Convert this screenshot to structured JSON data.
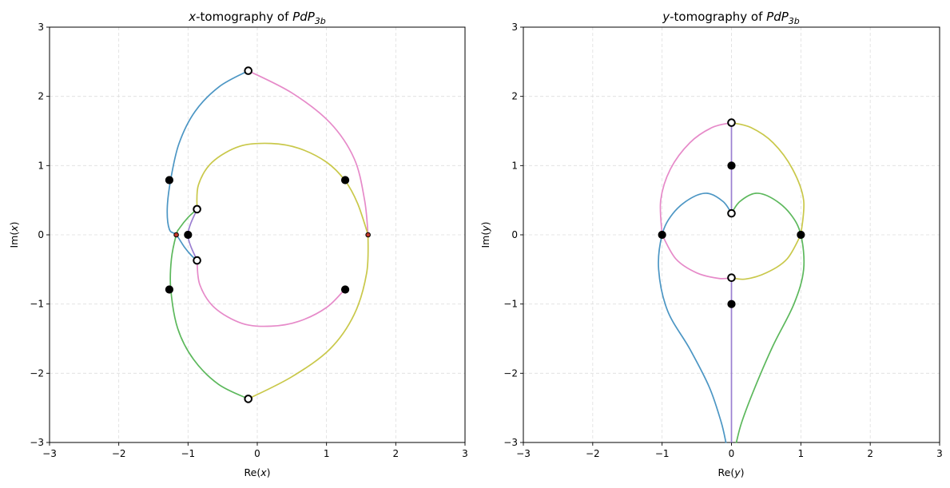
{
  "chart_data": [
    {
      "type": "line",
      "title_pre": "x",
      "title_mid": "-tomography of ",
      "title_math": "PdP",
      "title_sub": "3b",
      "xlabel_pre": "Re(",
      "xlabel_var": "x",
      "xlabel_post": ")",
      "ylabel_pre": "Im(",
      "ylabel_var": "x",
      "ylabel_post": ")",
      "xlim": [
        -3,
        3
      ],
      "ylim": [
        -3,
        3
      ],
      "xticks": [
        -3,
        -2,
        -1,
        0,
        1,
        2,
        3
      ],
      "yticks": [
        -3,
        -2,
        -1,
        0,
        1,
        2,
        3
      ],
      "tick_labels": [
        "−3",
        "−2",
        "−1",
        "0",
        "1",
        "2",
        "3"
      ],
      "grid": true,
      "series": [
        {
          "name": "blue",
          "color": "#4c96c4",
          "points": [
            [
              -0.13,
              2.37
            ],
            [
              -0.55,
              2.14
            ],
            [
              -0.9,
              1.78
            ],
            [
              -1.13,
              1.32
            ],
            [
              -1.25,
              0.8
            ],
            [
              -1.3,
              0.38
            ],
            [
              -1.27,
              0.08
            ],
            [
              -1.17,
              0.0
            ],
            [
              -1.05,
              -0.18
            ],
            [
              -0.95,
              -0.3
            ],
            [
              -0.87,
              -0.37
            ]
          ]
        },
        {
          "name": "pink-1",
          "color": "#e68ac9",
          "points": [
            [
              -0.13,
              2.37
            ],
            [
              0.5,
              2.05
            ],
            [
              1.05,
              1.62
            ],
            [
              1.4,
              1.1
            ],
            [
              1.55,
              0.5
            ],
            [
              1.6,
              0.0
            ]
          ]
        },
        {
          "name": "pink-2",
          "color": "#e68ac9",
          "points": [
            [
              -0.87,
              -0.37
            ],
            [
              -0.83,
              -0.72
            ],
            [
              -0.62,
              -1.05
            ],
            [
              -0.22,
              -1.28
            ],
            [
              0.2,
              -1.32
            ],
            [
              0.6,
              -1.25
            ],
            [
              1.0,
              -1.05
            ],
            [
              1.27,
              -0.78
            ]
          ]
        },
        {
          "name": "yellow-1",
          "color": "#c9c84a",
          "points": [
            [
              -0.87,
              0.37
            ],
            [
              -0.85,
              0.72
            ],
            [
              -0.65,
              1.05
            ],
            [
              -0.25,
              1.28
            ],
            [
              0.2,
              1.32
            ],
            [
              0.6,
              1.25
            ],
            [
              1.0,
              1.05
            ],
            [
              1.27,
              0.78
            ],
            [
              1.45,
              0.45
            ],
            [
              1.6,
              0.0
            ]
          ]
        },
        {
          "name": "yellow-2",
          "color": "#c9c84a",
          "points": [
            [
              1.6,
              0.0
            ],
            [
              1.58,
              -0.55
            ],
            [
              1.4,
              -1.15
            ],
            [
              1.05,
              -1.65
            ],
            [
              0.5,
              -2.05
            ],
            [
              -0.13,
              -2.37
            ]
          ]
        },
        {
          "name": "green",
          "color": "#5cb85c",
          "points": [
            [
              -0.87,
              0.37
            ],
            [
              -1.0,
              0.25
            ],
            [
              -1.12,
              0.1
            ],
            [
              -1.17,
              0.0
            ],
            [
              -1.24,
              -0.35
            ],
            [
              -1.25,
              -0.78
            ],
            [
              -1.15,
              -1.35
            ],
            [
              -0.92,
              -1.8
            ],
            [
              -0.56,
              -2.16
            ],
            [
              -0.13,
              -2.37
            ]
          ]
        },
        {
          "name": "purple",
          "color": "#9b7fd1",
          "points": [
            [
              -0.87,
              0.37
            ],
            [
              -1.0,
              0.0
            ],
            [
              -0.87,
              -0.37
            ]
          ]
        }
      ],
      "markers": [
        {
          "type": "filled",
          "x": -1.27,
          "y": 0.79
        },
        {
          "type": "filled",
          "x": -1.27,
          "y": -0.79
        },
        {
          "type": "filled",
          "x": 1.27,
          "y": 0.79
        },
        {
          "type": "filled",
          "x": 1.27,
          "y": -0.79
        },
        {
          "type": "filled",
          "x": -1.0,
          "y": 0.0
        },
        {
          "type": "open",
          "x": -0.13,
          "y": 2.37
        },
        {
          "type": "open",
          "x": -0.13,
          "y": -2.37
        },
        {
          "type": "open",
          "x": -0.87,
          "y": 0.37
        },
        {
          "type": "open",
          "x": -0.87,
          "y": -0.37
        },
        {
          "type": "red",
          "x": -1.17,
          "y": 0.0
        },
        {
          "type": "red",
          "x": 1.6,
          "y": 0.0
        }
      ]
    },
    {
      "type": "line",
      "title_pre": "y",
      "title_mid": "-tomography of ",
      "title_math": "PdP",
      "title_sub": "3b",
      "xlabel_pre": "Re(",
      "xlabel_var": "y",
      "xlabel_post": ")",
      "ylabel_pre": "Im(",
      "ylabel_var": "y",
      "ylabel_post": ")",
      "xlim": [
        -3,
        3
      ],
      "ylim": [
        -3,
        3
      ],
      "xticks": [
        -3,
        -2,
        -1,
        0,
        1,
        2,
        3
      ],
      "yticks": [
        -3,
        -2,
        -1,
        0,
        1,
        2,
        3
      ],
      "tick_labels": [
        "−3",
        "−2",
        "−1",
        "0",
        "1",
        "2",
        "3"
      ],
      "grid": true,
      "series": [
        {
          "name": "purple",
          "color": "#9b7fd1",
          "points": [
            [
              0.0,
              1.62
            ],
            [
              0.0,
              0.31
            ]
          ]
        },
        {
          "name": "purple-lower",
          "color": "#9b7fd1",
          "points": [
            [
              0.0,
              -0.62
            ],
            [
              0.0,
              -3.0
            ]
          ]
        },
        {
          "name": "pink-1",
          "color": "#e68ac9",
          "points": [
            [
              0.0,
              1.62
            ],
            [
              -0.28,
              1.55
            ],
            [
              -0.6,
              1.33
            ],
            [
              -0.88,
              0.95
            ],
            [
              -1.02,
              0.5
            ],
            [
              -1.0,
              0.0
            ]
          ]
        },
        {
          "name": "pink-2",
          "color": "#e68ac9",
          "points": [
            [
              -1.0,
              0.0
            ],
            [
              -0.8,
              -0.35
            ],
            [
              -0.5,
              -0.55
            ],
            [
              -0.18,
              -0.63
            ],
            [
              0.0,
              -0.62
            ]
          ]
        },
        {
          "name": "yellow-1",
          "color": "#c9c84a",
          "points": [
            [
              0.0,
              1.62
            ],
            [
              0.28,
              1.55
            ],
            [
              0.6,
              1.33
            ],
            [
              0.88,
              0.95
            ],
            [
              1.04,
              0.5
            ],
            [
              1.0,
              0.0
            ]
          ]
        },
        {
          "name": "yellow-2",
          "color": "#c9c84a",
          "points": [
            [
              1.0,
              0.0
            ],
            [
              0.8,
              -0.35
            ],
            [
              0.5,
              -0.55
            ],
            [
              0.2,
              -0.64
            ],
            [
              0.0,
              -0.62
            ]
          ]
        },
        {
          "name": "blue",
          "color": "#4c96c4",
          "points": [
            [
              0.0,
              0.31
            ],
            [
              -0.12,
              0.48
            ],
            [
              -0.35,
              0.6
            ],
            [
              -0.6,
              0.52
            ],
            [
              -0.85,
              0.3
            ],
            [
              -1.0,
              0.0
            ],
            [
              -1.05,
              -0.5
            ],
            [
              -0.92,
              -1.1
            ],
            [
              -0.6,
              -1.65
            ],
            [
              -0.32,
              -2.2
            ],
            [
              -0.15,
              -2.7
            ],
            [
              -0.08,
              -3.0
            ]
          ]
        },
        {
          "name": "green",
          "color": "#5cb85c",
          "points": [
            [
              0.0,
              0.31
            ],
            [
              0.12,
              0.48
            ],
            [
              0.35,
              0.6
            ],
            [
              0.6,
              0.52
            ],
            [
              0.85,
              0.3
            ],
            [
              1.0,
              0.0
            ],
            [
              1.04,
              -0.5
            ],
            [
              0.9,
              -1.0
            ],
            [
              0.6,
              -1.6
            ],
            [
              0.34,
              -2.2
            ],
            [
              0.15,
              -2.7
            ],
            [
              0.07,
              -3.0
            ]
          ]
        }
      ],
      "markers": [
        {
          "type": "filled",
          "x": -1.0,
          "y": 0.0
        },
        {
          "type": "filled",
          "x": 1.0,
          "y": 0.0
        },
        {
          "type": "filled",
          "x": 0.0,
          "y": 1.0
        },
        {
          "type": "filled",
          "x": 0.0,
          "y": -1.0
        },
        {
          "type": "open",
          "x": 0.0,
          "y": 1.62
        },
        {
          "type": "open",
          "x": 0.0,
          "y": 0.31
        },
        {
          "type": "open",
          "x": 0.0,
          "y": -0.62
        }
      ]
    }
  ]
}
